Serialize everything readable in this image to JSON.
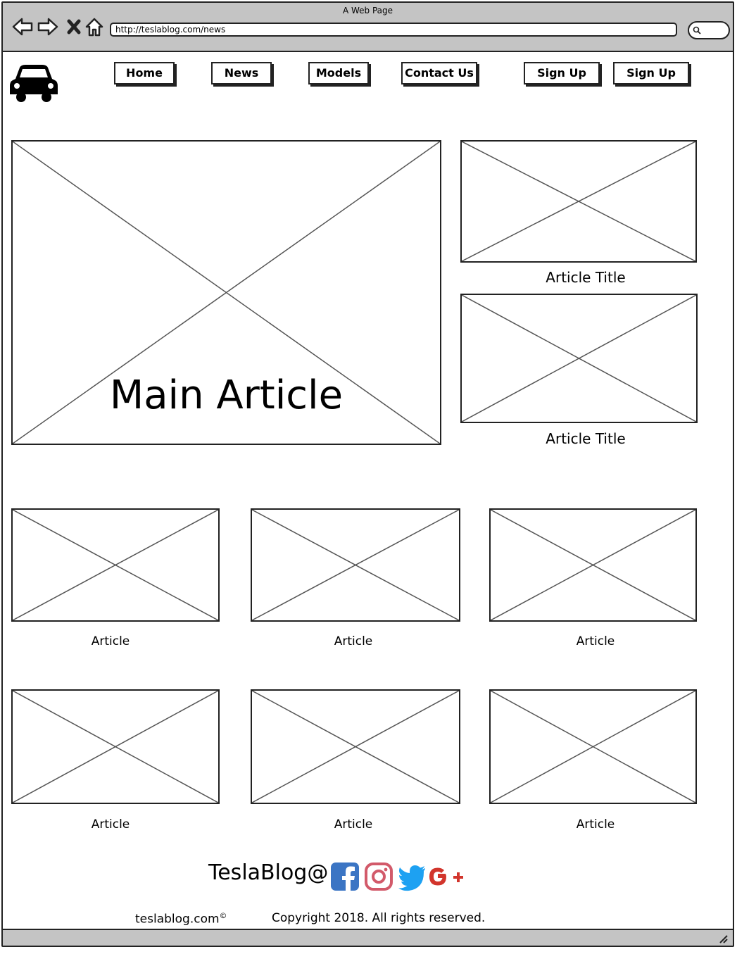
{
  "window": {
    "title": "A Web Page",
    "url": "http://teslablog.com/news"
  },
  "nav": {
    "items": [
      "Home",
      "News",
      "Models",
      "Contact Us"
    ],
    "auth": [
      "Sign Up",
      "Sign Up"
    ]
  },
  "hero": {
    "main_label": "Main Article",
    "side_titles": [
      "Article Title",
      "Article Title"
    ]
  },
  "grid": {
    "row1": [
      "Article",
      "Article",
      "Article"
    ],
    "row2": [
      "Article",
      "Article",
      "Article"
    ]
  },
  "footer": {
    "brand": "TeslaBlog@",
    "site": "teslablog.com",
    "site_mark": "©",
    "copyright": "Copyright 2018. All rights reserved.",
    "social": [
      "facebook",
      "instagram",
      "twitter",
      "google-plus"
    ]
  },
  "colors": {
    "chrome": "#c4c4c4",
    "facebook": "#3b75c4",
    "instagram": "#d25a6a",
    "twitter": "#1da1f2",
    "google": "#d2352c"
  }
}
